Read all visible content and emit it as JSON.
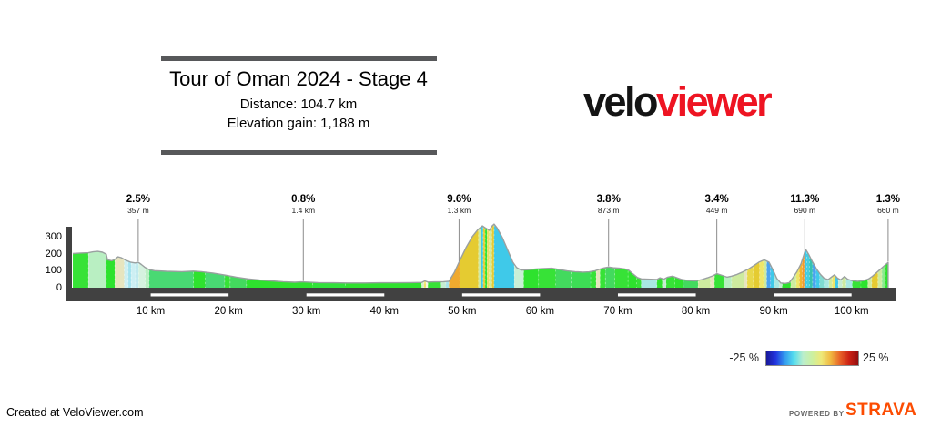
{
  "header": {
    "title": "Tour of Oman 2024 - Stage 4",
    "distance": "Distance: 104.7 km",
    "elevation_gain": "Elevation gain: 1,188 m"
  },
  "logo": {
    "part1": "velo",
    "part2": "viewer",
    "part1_color": "#141414",
    "part2_color": "#ee1422"
  },
  "legend": {
    "min_label": "-25 %",
    "max_label": "25 %",
    "gradient": [
      "#181899",
      "#2233dd",
      "#3399ee",
      "#55ddee",
      "#bbeecc",
      "#ccf0a0",
      "#eee878",
      "#f0b840",
      "#e86428",
      "#cc2214",
      "#920e10"
    ]
  },
  "footer": {
    "created": "Created at VeloViewer.com",
    "powered_by": "POWERED BY",
    "strava": "STRAVA",
    "strava_color": "#fc4c02"
  },
  "chart_data": {
    "type": "area",
    "title": "Tour of Oman 2024 - Stage 4",
    "total_distance_km": 104.7,
    "total_elevation_gain_m": 1188,
    "xlim": [
      0,
      104.7
    ],
    "ylim": [
      0,
      380
    ],
    "x_unit": "km",
    "y_unit": "m",
    "y_ticks": [
      0,
      100,
      200,
      300
    ],
    "x_ticks": [
      10,
      20,
      30,
      40,
      50,
      60,
      70,
      80,
      90,
      100
    ],
    "x_tick_suffix": " km",
    "distance_stripes_km": [
      [
        10,
        20
      ],
      [
        30,
        40
      ],
      [
        50,
        60
      ],
      [
        70,
        80
      ],
      [
        90,
        100
      ]
    ],
    "annotations": [
      {
        "km": 8.4,
        "gradient": "2.5%",
        "length": "357 m"
      },
      {
        "km": 29.6,
        "gradient": "0.8%",
        "length": "1.4 km"
      },
      {
        "km": 49.6,
        "gradient": "9.6%",
        "length": "1.3 km"
      },
      {
        "km": 68.8,
        "gradient": "3.8%",
        "length": "873 m"
      },
      {
        "km": 82.7,
        "gradient": "3.4%",
        "length": "449 m"
      },
      {
        "km": 94.0,
        "gradient": "11.3%",
        "length": "690 m"
      },
      {
        "km": 104.7,
        "gradient": "1.3%",
        "length": "660 m"
      }
    ],
    "elevation_profile": [
      [
        0,
        200
      ],
      [
        1,
        203
      ],
      [
        2,
        205
      ],
      [
        2.6,
        210
      ],
      [
        3.2,
        213
      ],
      [
        3.8,
        208
      ],
      [
        4.3,
        196
      ],
      [
        4.45,
        164
      ],
      [
        5,
        158
      ],
      [
        5.4,
        166
      ],
      [
        5.8,
        181
      ],
      [
        6.2,
        176
      ],
      [
        6.8,
        161
      ],
      [
        7.4,
        150
      ],
      [
        8,
        145
      ],
      [
        8.4,
        149
      ],
      [
        8.8,
        136
      ],
      [
        9.3,
        118
      ],
      [
        9.8,
        106
      ],
      [
        10.5,
        100
      ],
      [
        12,
        96
      ],
      [
        14,
        94
      ],
      [
        15.5,
        97
      ],
      [
        16.5,
        94
      ],
      [
        18,
        86
      ],
      [
        19.5,
        74
      ],
      [
        21,
        62
      ],
      [
        22.5,
        52
      ],
      [
        24,
        45
      ],
      [
        25.5,
        40
      ],
      [
        27,
        35
      ],
      [
        28.5,
        32
      ],
      [
        29.3,
        34
      ],
      [
        30,
        33
      ],
      [
        31.5,
        30
      ],
      [
        33.5,
        29
      ],
      [
        35.5,
        28
      ],
      [
        37.5,
        28
      ],
      [
        39.5,
        29
      ],
      [
        41.5,
        29
      ],
      [
        43.5,
        30
      ],
      [
        44.8,
        31
      ],
      [
        45.2,
        40
      ],
      [
        45.6,
        33
      ],
      [
        46.5,
        34
      ],
      [
        47.6,
        35
      ],
      [
        48.3,
        38
      ],
      [
        49,
        90
      ],
      [
        49.7,
        160
      ],
      [
        50.5,
        235
      ],
      [
        51.3,
        300
      ],
      [
        52,
        340
      ],
      [
        52.6,
        362
      ],
      [
        53,
        350
      ],
      [
        53.5,
        336
      ],
      [
        53.8,
        360
      ],
      [
        54.1,
        373
      ],
      [
        54.5,
        350
      ],
      [
        55.2,
        290
      ],
      [
        55.9,
        215
      ],
      [
        56.5,
        150
      ],
      [
        57,
        118
      ],
      [
        57.6,
        103
      ],
      [
        58.3,
        105
      ],
      [
        59.5,
        110
      ],
      [
        60.5,
        112
      ],
      [
        61.5,
        114
      ],
      [
        62.5,
        106
      ],
      [
        63.5,
        98
      ],
      [
        64.5,
        94
      ],
      [
        65.5,
        91
      ],
      [
        66.3,
        93
      ],
      [
        67,
        98
      ],
      [
        67.6,
        108
      ],
      [
        68.2,
        116
      ],
      [
        68.8,
        121
      ],
      [
        69.4,
        117
      ],
      [
        70.2,
        114
      ],
      [
        70.9,
        110
      ],
      [
        71.4,
        102
      ],
      [
        71.9,
        82
      ],
      [
        72.5,
        60
      ],
      [
        73,
        52
      ],
      [
        75,
        48
      ],
      [
        75.4,
        58
      ],
      [
        75.9,
        50
      ],
      [
        76.4,
        62
      ],
      [
        77,
        68
      ],
      [
        77.6,
        58
      ],
      [
        78.2,
        48
      ],
      [
        79,
        42
      ],
      [
        80,
        40
      ],
      [
        80.8,
        48
      ],
      [
        81.5,
        58
      ],
      [
        82.2,
        70
      ],
      [
        82.7,
        82
      ],
      [
        83.4,
        72
      ],
      [
        84,
        62
      ],
      [
        84.6,
        68
      ],
      [
        85.3,
        78
      ],
      [
        86,
        92
      ],
      [
        86.7,
        108
      ],
      [
        87.4,
        128
      ],
      [
        88.1,
        150
      ],
      [
        88.8,
        163
      ],
      [
        89.4,
        150
      ],
      [
        89.9,
        105
      ],
      [
        90.4,
        55
      ],
      [
        90.9,
        28
      ],
      [
        91.5,
        25
      ],
      [
        92,
        30
      ],
      [
        92.5,
        60
      ],
      [
        93,
        95
      ],
      [
        93.5,
        140
      ],
      [
        93.9,
        195
      ],
      [
        94.1,
        225
      ],
      [
        94.5,
        195
      ],
      [
        95,
        150
      ],
      [
        95.5,
        110
      ],
      [
        96,
        78
      ],
      [
        96.5,
        55
      ],
      [
        97,
        48
      ],
      [
        97.4,
        62
      ],
      [
        97.8,
        76
      ],
      [
        98.2,
        56
      ],
      [
        98.6,
        46
      ],
      [
        99.1,
        66
      ],
      [
        99.5,
        50
      ],
      [
        100,
        42
      ],
      [
        100.8,
        38
      ],
      [
        101.6,
        42
      ],
      [
        102.2,
        52
      ],
      [
        102.7,
        68
      ],
      [
        103.2,
        88
      ],
      [
        103.7,
        108
      ],
      [
        104.2,
        128
      ],
      [
        104.7,
        148
      ]
    ],
    "gradient_bands": [
      [
        0,
        2,
        "#37e237"
      ],
      [
        2,
        4.3,
        "#b9efc2"
      ],
      [
        4.3,
        5.4,
        "#2ee22e"
      ],
      [
        5.4,
        6.6,
        "#e7e5bf"
      ],
      [
        6.6,
        7.1,
        "#cdeff3"
      ],
      [
        7.1,
        7.5,
        "#a5e3ee"
      ],
      [
        7.5,
        8.05,
        "#cdeff3"
      ],
      [
        8.05,
        8.45,
        "#bfe9ee"
      ],
      [
        8.45,
        9.3,
        "#d5f2df"
      ],
      [
        9.3,
        9.8,
        "#b9efc2"
      ],
      [
        9.8,
        15.5,
        "#49d973"
      ],
      [
        15.5,
        17,
        "#2ee22e"
      ],
      [
        17,
        19.5,
        "#49d973"
      ],
      [
        19.5,
        20.2,
        "#37e237"
      ],
      [
        20.2,
        22.3,
        "#43da5e"
      ],
      [
        22.3,
        30.8,
        "#2ee22e"
      ],
      [
        30.8,
        35,
        "#30e23a"
      ],
      [
        35,
        44.8,
        "#2ee22e"
      ],
      [
        44.8,
        45.1,
        "#d8f0c8"
      ],
      [
        45.1,
        45.35,
        "#eee668"
      ],
      [
        45.35,
        45.6,
        "#f4f7e0"
      ],
      [
        45.6,
        47.3,
        "#37e237"
      ],
      [
        47.3,
        47.9,
        "#c6ecd2"
      ],
      [
        47.9,
        48.3,
        "#a5e3ee"
      ],
      [
        48.3,
        49.7,
        "#efa92f"
      ],
      [
        49.7,
        52.1,
        "#e5cb31"
      ],
      [
        52.1,
        52.4,
        "#cdeb9f"
      ],
      [
        52.4,
        52.7,
        "#3fc9e9"
      ],
      [
        52.7,
        52.95,
        "#e5cb31"
      ],
      [
        52.95,
        53.2,
        "#2ee22e"
      ],
      [
        53.2,
        53.5,
        "#e8e060"
      ],
      [
        53.5,
        53.8,
        "#cdeb9f"
      ],
      [
        53.8,
        54.1,
        "#e5cb31"
      ],
      [
        54.1,
        56.7,
        "#3fc9e9"
      ],
      [
        56.7,
        57.9,
        "#c9efd6"
      ],
      [
        57.9,
        59.8,
        "#2ee22e"
      ],
      [
        59.8,
        62,
        "#37e237"
      ],
      [
        62,
        64,
        "#43da5e"
      ],
      [
        64,
        66.5,
        "#3ddd55"
      ],
      [
        66.5,
        67.2,
        "#37e237"
      ],
      [
        67.2,
        67.7,
        "#e7e5bf"
      ],
      [
        67.7,
        68.4,
        "#37e237"
      ],
      [
        68.4,
        69.6,
        "#43da5e"
      ],
      [
        69.6,
        71.3,
        "#37e237"
      ],
      [
        71.3,
        72.4,
        "#2ee22e"
      ],
      [
        72.4,
        73,
        "#37e237"
      ],
      [
        73,
        75,
        "#a9e8e2"
      ],
      [
        75,
        75.7,
        "#2ee22e"
      ],
      [
        75.7,
        76.2,
        "#c6ecd2"
      ],
      [
        76.2,
        77.3,
        "#37e237"
      ],
      [
        77.3,
        78.4,
        "#2ee22e"
      ],
      [
        78.4,
        80.3,
        "#43da5e"
      ],
      [
        80.3,
        81.9,
        "#cdeb9f"
      ],
      [
        81.9,
        82.4,
        "#e7e5bf"
      ],
      [
        82.4,
        83.6,
        "#37e237"
      ],
      [
        83.6,
        84.6,
        "#b9efc2"
      ],
      [
        84.6,
        86.2,
        "#cdeb9f"
      ],
      [
        86.2,
        86.6,
        "#e7e5bf"
      ],
      [
        86.6,
        87.4,
        "#e8d84a"
      ],
      [
        87.4,
        88.2,
        "#e5cb31"
      ],
      [
        88.2,
        88.7,
        "#eee668"
      ],
      [
        88.7,
        89.1,
        "#cdeb9f"
      ],
      [
        89.1,
        89.6,
        "#4aa3ef"
      ],
      [
        89.6,
        90.1,
        "#3fc9e9"
      ],
      [
        90.1,
        90.7,
        "#a9e8e2"
      ],
      [
        90.7,
        91.1,
        "#c6ecd2"
      ],
      [
        91.1,
        92.2,
        "#2ee22e"
      ],
      [
        92.2,
        92.9,
        "#cdeb9f"
      ],
      [
        92.9,
        93.3,
        "#eee668"
      ],
      [
        93.3,
        93.65,
        "#f2b42e"
      ],
      [
        93.65,
        93.95,
        "#ef9a2f"
      ],
      [
        93.95,
        94.25,
        "#3fc9e9"
      ],
      [
        94.25,
        94.6,
        "#45cfe0"
      ],
      [
        94.6,
        95,
        "#37c3b2"
      ],
      [
        95,
        95.45,
        "#4aa3ef"
      ],
      [
        95.45,
        95.9,
        "#3fc9e9"
      ],
      [
        95.9,
        96.5,
        "#7fdcd2"
      ],
      [
        96.5,
        97.1,
        "#a9e8e2"
      ],
      [
        97.1,
        97.5,
        "#cdeb9f"
      ],
      [
        97.5,
        97.9,
        "#eee668"
      ],
      [
        97.9,
        98.3,
        "#3fc9e9"
      ],
      [
        98.3,
        98.8,
        "#c6ecd2"
      ],
      [
        98.8,
        99.3,
        "#cdeb9f"
      ],
      [
        99.3,
        100.1,
        "#a9e8e2"
      ],
      [
        100.1,
        101.2,
        "#37e237"
      ],
      [
        101.2,
        102.1,
        "#2ee22e"
      ],
      [
        102.1,
        102.6,
        "#cdeb9f"
      ],
      [
        102.6,
        103.4,
        "#e5cb31"
      ],
      [
        103.4,
        103.9,
        "#cdeb9f"
      ],
      [
        103.9,
        104.35,
        "#8de98d"
      ],
      [
        104.35,
        104.7,
        "#2ee22e"
      ]
    ]
  }
}
